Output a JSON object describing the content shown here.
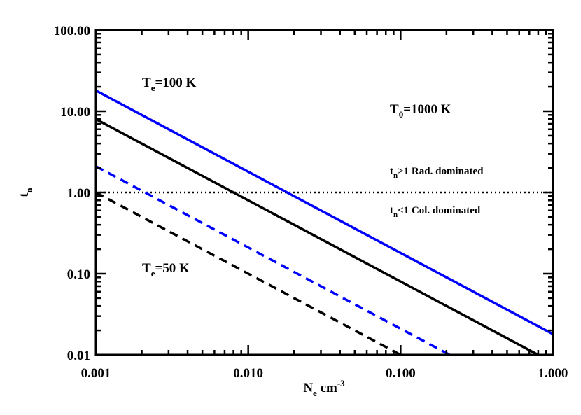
{
  "chart_data": {
    "type": "line",
    "xlabel": {
      "main": "N",
      "sub": "e",
      "unit": " cm",
      "sup": "-3"
    },
    "ylabel": {
      "main": "t",
      "sub": "n"
    },
    "xscale": "log",
    "yscale": "log",
    "xlim": [
      0.001,
      1.0
    ],
    "ylim": [
      0.01,
      100.0
    ],
    "xticks": [
      0.001,
      0.01,
      0.1,
      1.0
    ],
    "xtick_labels": [
      "0.001",
      "0.010",
      "0.100",
      "1.000"
    ],
    "yticks": [
      0.01,
      0.1,
      1.0,
      10.0,
      100.0
    ],
    "ytick_labels": [
      "0.01",
      "0.10",
      "1.00",
      "10.00",
      "100.00"
    ],
    "grid": false,
    "series": [
      {
        "color": "#0000ff",
        "style": "solid",
        "x": [
          0.001,
          1.0
        ],
        "y": [
          18.0,
          0.018
        ]
      },
      {
        "color": "#000000",
        "style": "solid",
        "x": [
          0.001,
          0.8
        ],
        "y": [
          8.0,
          0.01
        ]
      },
      {
        "color": "#0000ff",
        "style": "dashed",
        "x": [
          0.001,
          0.21
        ],
        "y": [
          2.1,
          0.01
        ]
      },
      {
        "color": "#000000",
        "style": "dashed",
        "x": [
          0.001,
          0.1
        ],
        "y": [
          1.0,
          0.01
        ]
      }
    ],
    "reference_line": {
      "y": 1.0,
      "style": "dotted",
      "color": "#000000"
    },
    "annotations": {
      "te100": {
        "main": "T",
        "sub": "e",
        "rest": "=100 K"
      },
      "te50": {
        "main": "T",
        "sub": "e",
        "rest": "=50 K"
      },
      "t0": {
        "main": "T",
        "sub": "0",
        "rest": "=1000 K"
      },
      "rad": {
        "main": "t",
        "sub": "n",
        "rest": ">1 Rad. dominated"
      },
      "col": {
        "main": "t",
        "sub": "n",
        "rest": "<1 Col. dominated"
      }
    }
  }
}
